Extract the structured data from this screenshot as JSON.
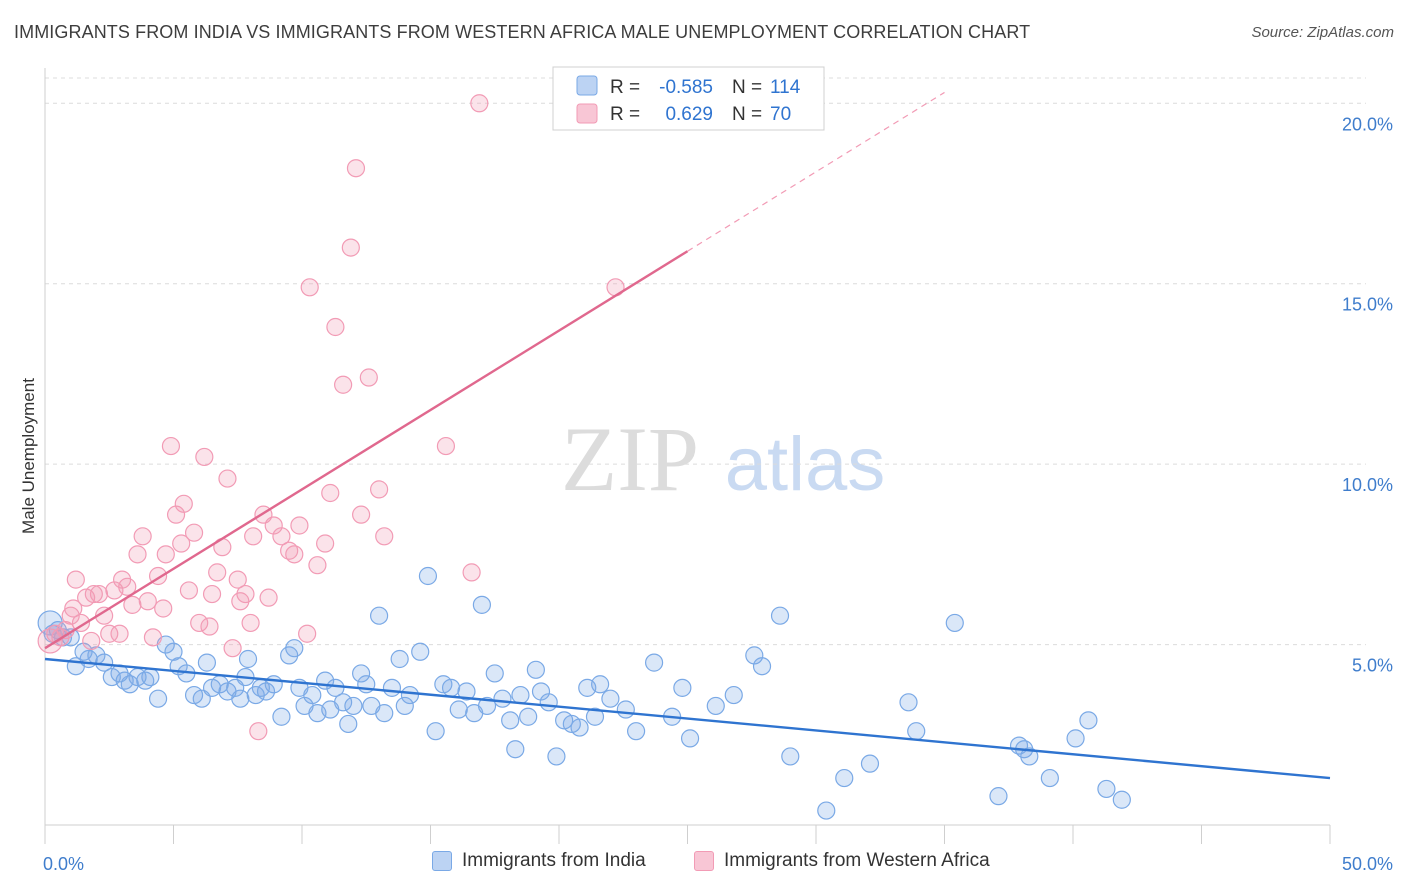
{
  "title": "IMMIGRANTS FROM INDIA VS IMMIGRANTS FROM WESTERN AFRICA MALE UNEMPLOYMENT CORRELATION CHART",
  "source": "Source: ZipAtlas.com",
  "watermark": {
    "zip": "ZIP",
    "atlas": "atlas"
  },
  "chart_data": {
    "type": "scatter",
    "title": "IMMIGRANTS FROM INDIA VS IMMIGRANTS FROM WESTERN AFRICA MALE UNEMPLOYMENT CORRELATION CHART",
    "xlabel": "",
    "ylabel": "Male Unemployment",
    "xlim": [
      0,
      50
    ],
    "ylim": [
      0,
      20.7
    ],
    "x_tick_labels": [
      "0.0%",
      "50.0%"
    ],
    "y_ticks": [
      5,
      10,
      15,
      20
    ],
    "y_tick_labels": [
      "5.0%",
      "10.0%",
      "15.0%",
      "20.0%"
    ],
    "grid": "horizontal dashed",
    "legend_position": "top-center",
    "stats": [
      {
        "r_label": "R =",
        "r_value": "-0.585",
        "n_label": "N =",
        "n_value": "114"
      },
      {
        "r_label": "R =",
        "r_value": "0.629",
        "n_label": "N =",
        "n_value": "70"
      }
    ],
    "series": [
      {
        "name": "Immigrants from India",
        "color": "#7aa9e6",
        "line_color": "#2f74d0",
        "trend": {
          "x": [
            0,
            50
          ],
          "y": [
            4.6,
            1.3
          ],
          "dashed_from": null
        },
        "points": [
          [
            0.2,
            5.6
          ],
          [
            0.3,
            5.3
          ],
          [
            0.5,
            5.4
          ],
          [
            0.7,
            5.2
          ],
          [
            1.0,
            5.2
          ],
          [
            1.2,
            4.4
          ],
          [
            1.5,
            4.8
          ],
          [
            1.7,
            4.6
          ],
          [
            2.0,
            4.7
          ],
          [
            2.3,
            4.5
          ],
          [
            2.6,
            4.1
          ],
          [
            2.9,
            4.2
          ],
          [
            3.1,
            4.0
          ],
          [
            3.3,
            3.9
          ],
          [
            3.6,
            4.1
          ],
          [
            3.9,
            4.0
          ],
          [
            4.1,
            4.1
          ],
          [
            4.4,
            3.5
          ],
          [
            4.7,
            5.0
          ],
          [
            5.0,
            4.8
          ],
          [
            5.2,
            4.4
          ],
          [
            5.5,
            4.2
          ],
          [
            5.8,
            3.6
          ],
          [
            6.1,
            3.5
          ],
          [
            6.3,
            4.5
          ],
          [
            6.5,
            3.8
          ],
          [
            6.8,
            3.9
          ],
          [
            7.1,
            3.7
          ],
          [
            7.4,
            3.8
          ],
          [
            7.6,
            3.5
          ],
          [
            7.8,
            4.1
          ],
          [
            7.9,
            4.6
          ],
          [
            8.2,
            3.6
          ],
          [
            8.4,
            3.8
          ],
          [
            8.6,
            3.7
          ],
          [
            8.9,
            3.9
          ],
          [
            9.2,
            3.0
          ],
          [
            9.5,
            4.7
          ],
          [
            9.7,
            4.9
          ],
          [
            9.9,
            3.8
          ],
          [
            10.1,
            3.3
          ],
          [
            10.4,
            3.6
          ],
          [
            10.6,
            3.1
          ],
          [
            10.9,
            4.0
          ],
          [
            11.1,
            3.2
          ],
          [
            11.3,
            3.8
          ],
          [
            11.6,
            3.4
          ],
          [
            11.8,
            2.8
          ],
          [
            12.0,
            3.3
          ],
          [
            12.3,
            4.2
          ],
          [
            12.5,
            3.9
          ],
          [
            12.7,
            3.3
          ],
          [
            13.0,
            5.8
          ],
          [
            13.2,
            3.1
          ],
          [
            13.5,
            3.8
          ],
          [
            13.8,
            4.6
          ],
          [
            14.0,
            3.3
          ],
          [
            14.2,
            3.6
          ],
          [
            14.6,
            4.8
          ],
          [
            14.9,
            6.9
          ],
          [
            15.2,
            2.6
          ],
          [
            15.5,
            3.9
          ],
          [
            15.8,
            3.8
          ],
          [
            16.1,
            3.2
          ],
          [
            16.4,
            3.7
          ],
          [
            16.7,
            3.1
          ],
          [
            17.0,
            6.1
          ],
          [
            17.2,
            3.3
          ],
          [
            17.5,
            4.2
          ],
          [
            17.8,
            3.5
          ],
          [
            18.1,
            2.9
          ],
          [
            18.3,
            2.1
          ],
          [
            18.5,
            3.6
          ],
          [
            18.8,
            3.0
          ],
          [
            19.1,
            4.3
          ],
          [
            19.3,
            3.7
          ],
          [
            19.6,
            3.4
          ],
          [
            19.9,
            1.9
          ],
          [
            20.2,
            2.9
          ],
          [
            20.5,
            2.8
          ],
          [
            20.8,
            2.7
          ],
          [
            21.1,
            3.8
          ],
          [
            21.4,
            3.0
          ],
          [
            21.6,
            3.9
          ],
          [
            22.0,
            3.5
          ],
          [
            22.6,
            3.2
          ],
          [
            23.0,
            2.6
          ],
          [
            23.7,
            4.5
          ],
          [
            24.4,
            3.0
          ],
          [
            24.8,
            3.8
          ],
          [
            25.1,
            2.4
          ],
          [
            26.1,
            3.3
          ],
          [
            26.8,
            3.6
          ],
          [
            27.6,
            4.7
          ],
          [
            27.9,
            4.4
          ],
          [
            28.6,
            5.8
          ],
          [
            29.0,
            1.9
          ],
          [
            30.4,
            0.4
          ],
          [
            31.1,
            1.3
          ],
          [
            32.1,
            1.7
          ],
          [
            33.6,
            3.4
          ],
          [
            33.9,
            2.6
          ],
          [
            35.4,
            5.6
          ],
          [
            37.1,
            0.8
          ],
          [
            37.9,
            2.2
          ],
          [
            38.1,
            2.1
          ],
          [
            38.3,
            1.9
          ],
          [
            39.1,
            1.3
          ],
          [
            40.1,
            2.4
          ],
          [
            40.6,
            2.9
          ],
          [
            41.3,
            1.0
          ],
          [
            41.9,
            0.7
          ]
        ]
      },
      {
        "name": "Immigrants from Western Africa",
        "color": "#f29bb5",
        "line_color": "#e0688e",
        "trend": {
          "x": [
            0,
            25
          ],
          "y": [
            4.9,
            15.9
          ],
          "dashed_to": [
            35,
            20.3
          ]
        },
        "points": [
          [
            0.2,
            5.1
          ],
          [
            0.4,
            5.3
          ],
          [
            0.6,
            5.2
          ],
          [
            0.8,
            5.4
          ],
          [
            1.0,
            5.8
          ],
          [
            1.1,
            6.0
          ],
          [
            1.2,
            6.8
          ],
          [
            1.4,
            5.6
          ],
          [
            1.6,
            6.3
          ],
          [
            1.8,
            5.1
          ],
          [
            1.9,
            6.4
          ],
          [
            2.1,
            6.4
          ],
          [
            2.3,
            5.8
          ],
          [
            2.5,
            5.3
          ],
          [
            2.7,
            6.5
          ],
          [
            2.9,
            5.3
          ],
          [
            3.0,
            6.8
          ],
          [
            3.2,
            6.6
          ],
          [
            3.4,
            6.1
          ],
          [
            3.6,
            7.5
          ],
          [
            3.8,
            8.0
          ],
          [
            4.0,
            6.2
          ],
          [
            4.2,
            5.2
          ],
          [
            4.4,
            6.9
          ],
          [
            4.6,
            6.0
          ],
          [
            4.7,
            7.5
          ],
          [
            4.9,
            10.5
          ],
          [
            5.1,
            8.6
          ],
          [
            5.3,
            7.8
          ],
          [
            5.4,
            8.9
          ],
          [
            5.6,
            6.5
          ],
          [
            5.8,
            8.1
          ],
          [
            6.0,
            5.6
          ],
          [
            6.2,
            10.2
          ],
          [
            6.4,
            5.5
          ],
          [
            6.5,
            6.4
          ],
          [
            6.7,
            7.0
          ],
          [
            6.9,
            7.7
          ],
          [
            7.1,
            9.6
          ],
          [
            7.3,
            4.9
          ],
          [
            7.5,
            6.8
          ],
          [
            7.6,
            6.2
          ],
          [
            7.8,
            6.4
          ],
          [
            8.0,
            5.6
          ],
          [
            8.1,
            8.0
          ],
          [
            8.3,
            2.6
          ],
          [
            8.5,
            8.6
          ],
          [
            8.7,
            6.3
          ],
          [
            8.9,
            8.3
          ],
          [
            9.2,
            8.0
          ],
          [
            9.5,
            7.6
          ],
          [
            9.7,
            7.5
          ],
          [
            9.9,
            8.3
          ],
          [
            10.2,
            5.3
          ],
          [
            10.3,
            14.9
          ],
          [
            10.6,
            7.2
          ],
          [
            10.9,
            7.8
          ],
          [
            11.1,
            9.2
          ],
          [
            11.3,
            13.8
          ],
          [
            11.6,
            12.2
          ],
          [
            11.9,
            16.0
          ],
          [
            12.1,
            18.2
          ],
          [
            12.3,
            8.6
          ],
          [
            12.6,
            12.4
          ],
          [
            13.0,
            9.3
          ],
          [
            13.2,
            8.0
          ],
          [
            15.6,
            10.5
          ],
          [
            16.6,
            7.0
          ],
          [
            16.9,
            20.0
          ],
          [
            22.2,
            14.9
          ]
        ]
      }
    ]
  }
}
